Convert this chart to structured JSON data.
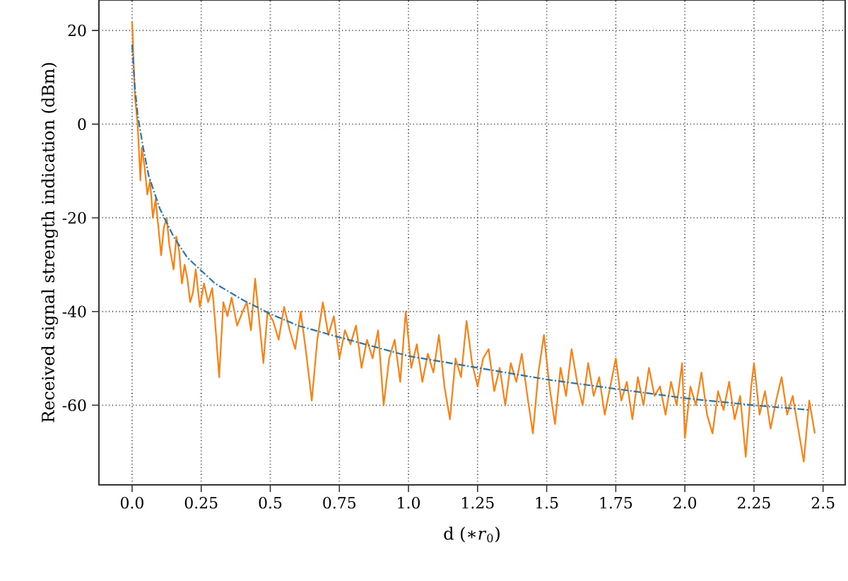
{
  "chart_data": {
    "type": "line",
    "xlabel": "d (∗*r*$_{0}$)",
    "ylabel": "Received signal strength indication (dBm)",
    "xlim": [
      -0.12,
      2.58
    ],
    "ylim": [
      -77,
      26.5
    ],
    "xticks": [
      {
        "value": 0,
        "label": "0.0"
      },
      0.25,
      0.5,
      0.75,
      {
        "value": 1,
        "label": "1.0"
      },
      1.25,
      1.5,
      1.75,
      {
        "value": 2,
        "label": "2.0"
      },
      2.25,
      2.5
    ],
    "yticks": [
      -60,
      -40,
      -20,
      0,
      20
    ],
    "grid": true,
    "marker": "none",
    "series": [
      {
        "color": "#ff7f0e",
        "line_style": "solid",
        "x": [
          0.0,
          0.01,
          0.02,
          0.03,
          0.035,
          0.045,
          0.055,
          0.065,
          0.075,
          0.085,
          0.095,
          0.105,
          0.115,
          0.125,
          0.135,
          0.15,
          0.16,
          0.17,
          0.18,
          0.19,
          0.2,
          0.21,
          0.22,
          0.23,
          0.245,
          0.26,
          0.275,
          0.29,
          0.3,
          0.315,
          0.33,
          0.345,
          0.36,
          0.38,
          0.4,
          0.415,
          0.43,
          0.445,
          0.46,
          0.475,
          0.49,
          0.51,
          0.53,
          0.55,
          0.57,
          0.59,
          0.61,
          0.63,
          0.65,
          0.67,
          0.69,
          0.71,
          0.73,
          0.75,
          0.77,
          0.79,
          0.81,
          0.83,
          0.85,
          0.87,
          0.89,
          0.91,
          0.93,
          0.95,
          0.97,
          0.99,
          1.01,
          1.03,
          1.05,
          1.07,
          1.09,
          1.11,
          1.13,
          1.15,
          1.17,
          1.19,
          1.21,
          1.23,
          1.25,
          1.27,
          1.29,
          1.31,
          1.33,
          1.35,
          1.37,
          1.39,
          1.41,
          1.43,
          1.45,
          1.47,
          1.49,
          1.51,
          1.53,
          1.55,
          1.57,
          1.59,
          1.61,
          1.63,
          1.65,
          1.67,
          1.69,
          1.71,
          1.73,
          1.75,
          1.77,
          1.79,
          1.81,
          1.83,
          1.85,
          1.87,
          1.89,
          1.91,
          1.93,
          1.95,
          1.97,
          1.99,
          2.0,
          2.02,
          2.04,
          2.06,
          2.08,
          2.1,
          2.12,
          2.14,
          2.16,
          2.18,
          2.2,
          2.22,
          2.24,
          2.25,
          2.27,
          2.29,
          2.31,
          2.33,
          2.35,
          2.37,
          2.39,
          2.41,
          2.43,
          2.45,
          2.47
        ],
        "values": [
          22,
          6,
          0,
          -12,
          -5,
          -9,
          -15,
          -12,
          -20,
          -16,
          -22,
          -28,
          -22,
          -20,
          -26,
          -31,
          -24,
          -27,
          -34,
          -30,
          -33,
          -38,
          -36,
          -31,
          -39,
          -34,
          -38,
          -35,
          -42,
          -54,
          -38,
          -41,
          -37,
          -43,
          -40,
          -38,
          -44,
          -33,
          -42,
          -51,
          -40,
          -42,
          -46,
          -39,
          -44,
          -48,
          -40,
          -49,
          -59,
          -46,
          -38,
          -45,
          -41,
          -50,
          -44,
          -47,
          -43,
          -52,
          -46,
          -50,
          -44,
          -60,
          -50,
          -46,
          -55,
          -40,
          -52,
          -47,
          -55,
          -49,
          -53,
          -45,
          -56,
          -63,
          -50,
          -54,
          -42,
          -51,
          -56,
          -50,
          -48,
          -57,
          -52,
          -60,
          -51,
          -55,
          -49,
          -58,
          -66,
          -53,
          -45,
          -56,
          -64,
          -52,
          -58,
          -48,
          -55,
          -60,
          -51,
          -58,
          -54,
          -62,
          -56,
          -50,
          -59,
          -55,
          -63,
          -54,
          -60,
          -52,
          -58,
          -56,
          -62,
          -55,
          -60,
          -51,
          -67,
          -56,
          -60,
          -53,
          -62,
          -66,
          -57,
          -61,
          -55,
          -63,
          -58,
          -71,
          -56,
          -51,
          -62,
          -57,
          -65,
          -59,
          -54,
          -62,
          -58,
          -65,
          -72,
          -59,
          -66
        ]
      },
      {
        "color": "#1f77b4",
        "line_style": "dashed",
        "x": [
          0.0,
          0.01,
          0.02,
          0.04,
          0.06,
          0.1,
          0.15,
          0.2,
          0.3,
          0.4,
          0.5,
          0.6,
          0.75,
          1.0,
          1.25,
          1.5,
          1.75,
          2.0,
          2.25,
          2.45
        ],
        "values": [
          17,
          8,
          2,
          -5,
          -11,
          -18,
          -24,
          -28.5,
          -34,
          -37.5,
          -40.5,
          -43,
          -45.5,
          -49.5,
          -52,
          -54.5,
          -56.5,
          -58.5,
          -60,
          -61
        ]
      }
    ]
  }
}
